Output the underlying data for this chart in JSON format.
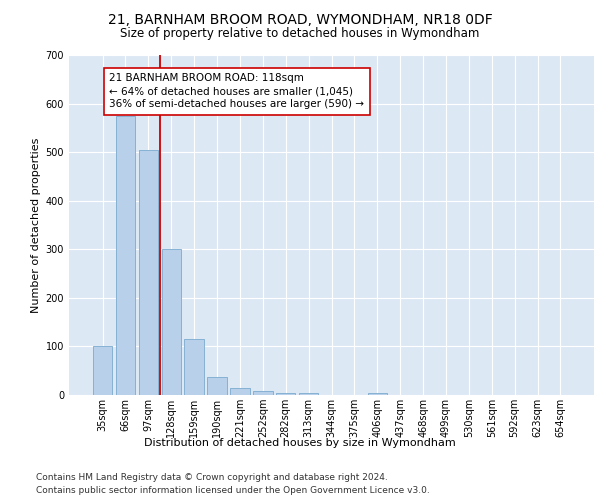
{
  "title": "21, BARNHAM BROOM ROAD, WYMONDHAM, NR18 0DF",
  "subtitle": "Size of property relative to detached houses in Wymondham",
  "xlabel": "Distribution of detached houses by size in Wymondham",
  "ylabel": "Number of detached properties",
  "categories": [
    "35sqm",
    "66sqm",
    "97sqm",
    "128sqm",
    "159sqm",
    "190sqm",
    "221sqm",
    "252sqm",
    "282sqm",
    "313sqm",
    "344sqm",
    "375sqm",
    "406sqm",
    "437sqm",
    "468sqm",
    "499sqm",
    "530sqm",
    "561sqm",
    "592sqm",
    "623sqm",
    "654sqm"
  ],
  "values": [
    100,
    575,
    505,
    300,
    115,
    38,
    15,
    8,
    5,
    5,
    0,
    0,
    5,
    0,
    0,
    0,
    0,
    0,
    0,
    0,
    0
  ],
  "bar_color": "#b8d0ea",
  "bar_edge_color": "#7aaacf",
  "vline_x": 2.5,
  "vline_color": "#cc0000",
  "ylim": [
    0,
    700
  ],
  "yticks": [
    0,
    100,
    200,
    300,
    400,
    500,
    600,
    700
  ],
  "annotation_text": "21 BARNHAM BROOM ROAD: 118sqm\n← 64% of detached houses are smaller (1,045)\n36% of semi-detached houses are larger (590) →",
  "annotation_box_color": "#ffffff",
  "annotation_box_edge": "#cc0000",
  "footer_line1": "Contains HM Land Registry data © Crown copyright and database right 2024.",
  "footer_line2": "Contains public sector information licensed under the Open Government Licence v3.0.",
  "plot_bg_color": "#dde8f5",
  "grid_color": "#ffffff",
  "title_fontsize": 10,
  "subtitle_fontsize": 8.5,
  "axis_label_fontsize": 8,
  "tick_fontsize": 7,
  "annotation_fontsize": 7.5,
  "footer_fontsize": 6.5
}
